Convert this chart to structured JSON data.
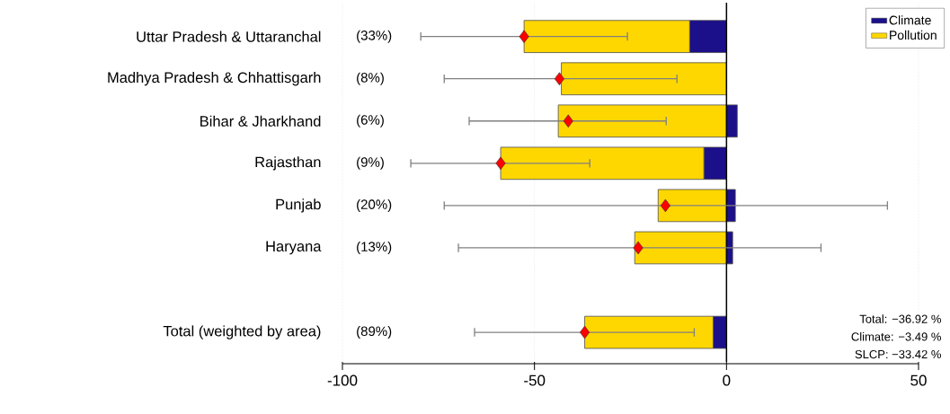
{
  "chart_data": {
    "type": "bar",
    "orientation": "horizontal",
    "categories": [
      "Uttar Pradesh & Uttaranchal",
      "Madhya Pradesh & Chhattisgarh",
      "Bihar & Jharkhand",
      "Rajasthan",
      "Punjab",
      "Haryana",
      null,
      "Total (weighted by area)"
    ],
    "series": [
      {
        "name": "Climate",
        "color": "#1c0f8a",
        "values": [
          -9.6,
          null,
          2.8,
          -5.9,
          2.3,
          1.6,
          null,
          -3.49
        ]
      },
      {
        "name": "Pollution",
        "color": "#ffd700",
        "values": [
          -43.1,
          -43.0,
          -43.8,
          -52.9,
          -17.8,
          -23.9,
          null,
          -33.43
        ]
      },
      {
        "type": "scatter",
        "color": "#ff0000",
        "marker": "diamond",
        "values": [
          -52.7,
          -43.5,
          -41.2,
          -58.8,
          -15.9,
          -23.0,
          null,
          -36.92
        ],
        "errors": [
          [
            -79.6,
            -25.8
          ],
          [
            -73.5,
            -12.9
          ],
          [
            -67.0,
            -15.7
          ],
          [
            -82.2,
            -35.6
          ],
          [
            -73.5,
            41.9
          ],
          [
            -69.8,
            24.6
          ],
          null,
          [
            -65.6,
            -8.4
          ]
        ]
      }
    ],
    "xlim": [
      -100,
      50
    ],
    "xticks": [
      -100,
      -50,
      0,
      50
    ],
    "stacked": true,
    "grid": "x",
    "legend": "top right",
    "ref_lines": [
      {
        "axis": "x",
        "value": 0,
        "color": "#000000"
      }
    ],
    "annotations": [
      "(33%)",
      "(8%)",
      "(6%)",
      "(9%)",
      "(20%)",
      "(13%)",
      "(89%)",
      "Total:  −36.92 %",
      "Climate:  −3.49 %",
      "SLCP:  −33.42 %"
    ]
  }
}
